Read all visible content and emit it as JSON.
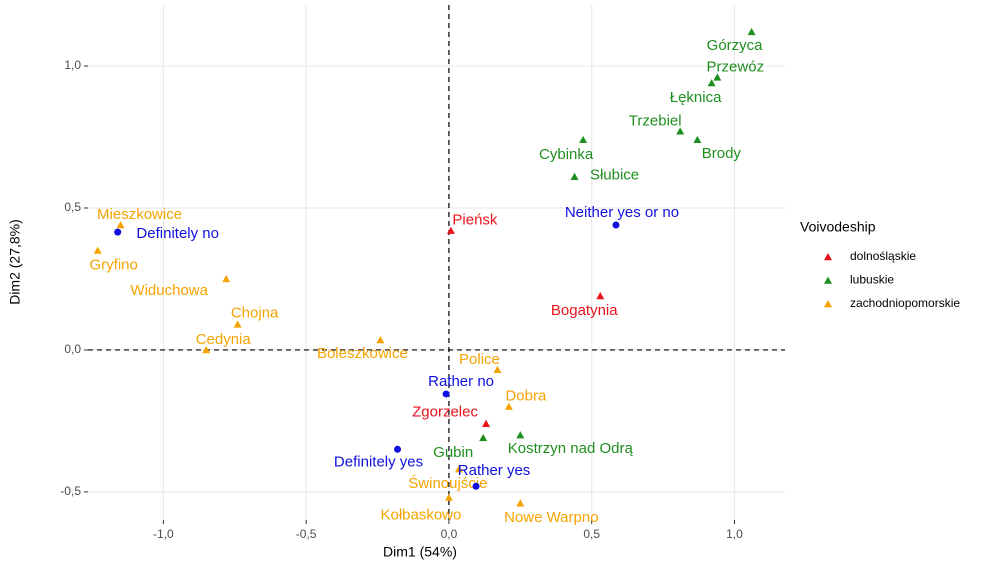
{
  "chart_data": {
    "type": "scatter",
    "xlabel": "Dim1 (54%)",
    "ylabel": "Dim2 (27,8%)",
    "xlim": [
      -1.264,
      1.177
    ],
    "ylim": [
      -0.599,
      1.215
    ],
    "xticks": [
      {
        "value": -1.0,
        "label": "-1,0"
      },
      {
        "value": -0.5,
        "label": "-0,5"
      },
      {
        "value": 0.0,
        "label": "0,0"
      },
      {
        "value": 0.5,
        "label": "0,5"
      },
      {
        "value": 1.0,
        "label": "1,0"
      }
    ],
    "yticks": [
      {
        "value": -0.5,
        "label": "-0,5"
      },
      {
        "value": 0.0,
        "label": "0,0"
      },
      {
        "value": 0.5,
        "label": "0,5"
      },
      {
        "value": 1.0,
        "label": "1,0"
      }
    ],
    "grid": true,
    "legend_title": "Voivodeship",
    "legend": "right",
    "series": [
      {
        "name": "dolnośląskie",
        "color": "#e8131b",
        "marker": "triangle",
        "labels": [
          "Pieńsk",
          "Bogatynia",
          "Zgorzelec"
        ],
        "x": [
          0.007,
          0.53,
          0.13
        ],
        "y": [
          0.42,
          0.19,
          -0.26
        ]
      },
      {
        "name": "lubuskie",
        "color": "#1f8f1f",
        "marker": "triangle",
        "labels": [
          "Górzyca",
          "Przewóz",
          "Łęknica",
          "Trzebiel",
          "Brody",
          "Cybinka",
          "Słubice",
          "Gubin",
          "Kostrzyn nad Odrą"
        ],
        "x": [
          1.06,
          0.94,
          0.92,
          0.81,
          0.87,
          0.47,
          0.44,
          0.12,
          0.25
        ],
        "y": [
          1.12,
          0.96,
          0.94,
          0.77,
          0.74,
          0.74,
          0.61,
          -0.31,
          -0.3
        ]
      },
      {
        "name": "zachodniopomorskie",
        "color": "#f5a300",
        "marker": "triangle",
        "labels": [
          "Mieszkowice",
          "Gryfino",
          "Widuchowa",
          "Chojna",
          "Cedynia",
          "Boleszkowice",
          "Police",
          "Dobra",
          "Świnoujście",
          "Kołbaskowo",
          "Nowe Warpno"
        ],
        "x": [
          -1.15,
          -1.23,
          -0.78,
          -0.74,
          -0.85,
          -0.24,
          0.17,
          0.21,
          0.035,
          0.0,
          0.25
        ],
        "y": [
          0.44,
          0.35,
          0.25,
          0.09,
          0.0,
          0.035,
          -0.07,
          -0.2,
          -0.42,
          -0.52,
          -0.54
        ]
      }
    ],
    "answers": {
      "color": "#1010e0",
      "marker": "circle",
      "labels": [
        "Definitely no",
        "Neither yes or no",
        "Rather no",
        "Definitely yes",
        "Rather yes"
      ],
      "x": [
        -1.16,
        0.585,
        -0.01,
        -0.18,
        0.095
      ],
      "y": [
        0.415,
        0.44,
        -0.155,
        -0.35,
        -0.48
      ]
    }
  }
}
